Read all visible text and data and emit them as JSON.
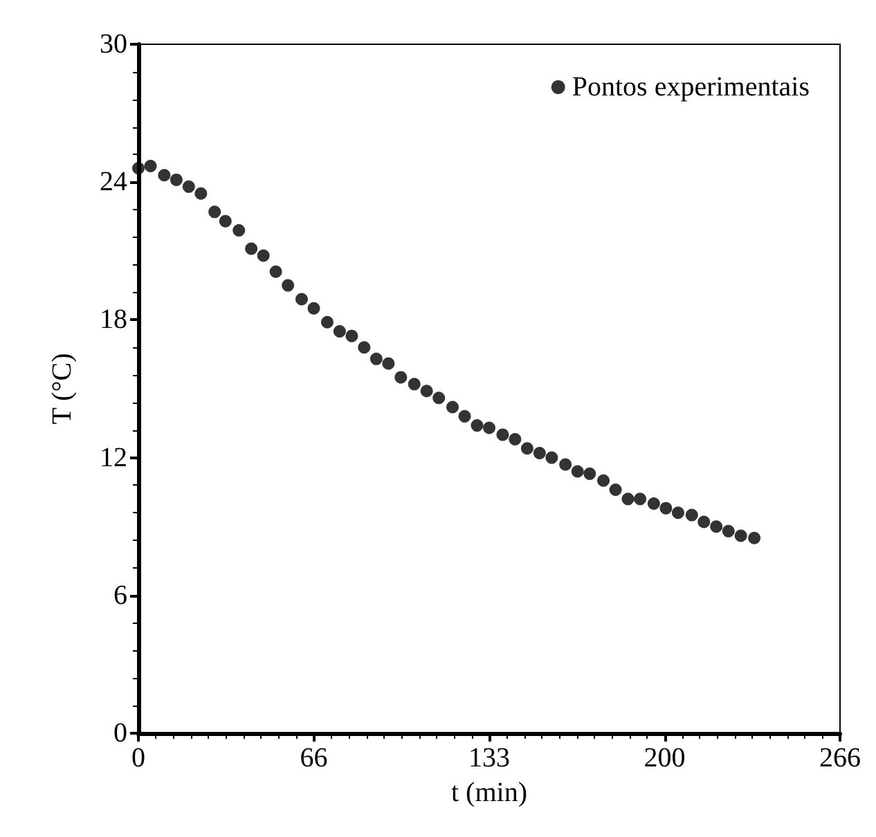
{
  "chart_data": {
    "type": "scatter",
    "xlabel": "t (min)",
    "ylabel": "T (°C)",
    "xlim": [
      0,
      266
    ],
    "xticks": [
      0,
      {
        "value": 66.5,
        "label": "66"
      },
      133,
      {
        "value": 199.5,
        "label": "200"
      },
      266
    ],
    "ylim": [
      0,
      30
    ],
    "yticks": [
      0,
      6,
      12,
      18,
      24,
      30
    ],
    "x": [
      0,
      4.6,
      9.8,
      14.4,
      19.1,
      23.7,
      28.9,
      33.0,
      38.1,
      42.8,
      47.4,
      52.1,
      56.7,
      61.9,
      66.5,
      71.6,
      76.3,
      80.9,
      85.6,
      90.2,
      94.8,
      99.5,
      104.6,
      109.3,
      113.9,
      119.1,
      123.7,
      128.4,
      133.0,
      138.1,
      142.8,
      147.4,
      152.1,
      156.7,
      161.9,
      166.5,
      171.1,
      176.3,
      180.9,
      185.6,
      190.2,
      195.4,
      200.0,
      204.6,
      209.8,
      214.4,
      219.1,
      223.7,
      228.4,
      233.5
    ],
    "series": [
      {
        "name": "Pontos experimentais",
        "color": "#000000",
        "values": [
          24.6,
          24.7,
          24.3,
          24.1,
          23.8,
          23.5,
          22.7,
          22.3,
          21.9,
          21.1,
          20.8,
          20.1,
          19.5,
          18.9,
          18.5,
          17.9,
          17.5,
          17.3,
          16.8,
          16.3,
          16.1,
          15.5,
          15.2,
          14.9,
          14.6,
          14.2,
          13.8,
          13.4,
          13.3,
          13.0,
          12.8,
          12.4,
          12.2,
          12.0,
          11.7,
          11.4,
          11.3,
          11.0,
          10.6,
          10.2,
          10.2,
          10.0,
          9.8,
          9.6,
          9.5,
          9.2,
          9.0,
          8.8,
          8.6,
          8.5
        ]
      }
    ],
    "marker": "circle",
    "grid": false,
    "legend": "top right"
  }
}
